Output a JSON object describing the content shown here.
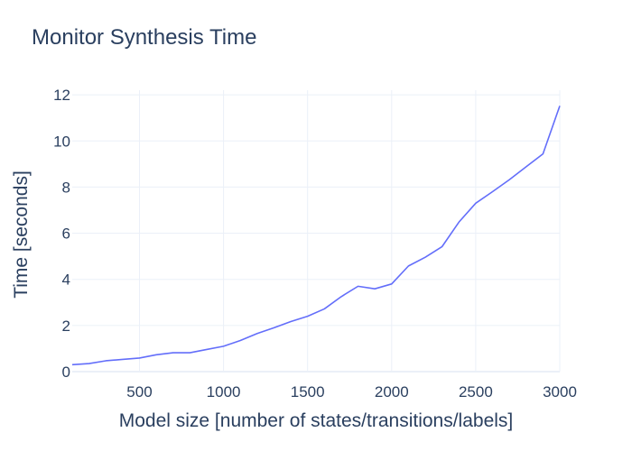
{
  "chart_data": {
    "type": "line",
    "title": "Monitor Synthesis Time",
    "xlabel": "Model size [number of states/transitions/labels]",
    "ylabel": "Time [seconds]",
    "xlim": [
      100,
      3000
    ],
    "ylim": [
      0,
      12.2
    ],
    "xticks": [
      500,
      1000,
      1500,
      2000,
      2500,
      3000
    ],
    "yticks": [
      0,
      2,
      4,
      6,
      8,
      10,
      12
    ],
    "grid": true,
    "legend": "none",
    "series": [
      {
        "color": "#636efa",
        "x": [
          100,
          200,
          300,
          400,
          500,
          600,
          700,
          800,
          900,
          1000,
          1100,
          1200,
          1300,
          1400,
          1500,
          1600,
          1700,
          1800,
          1900,
          2000,
          2100,
          2200,
          2300,
          2400,
          2500,
          2600,
          2700,
          2800,
          2900,
          3000
        ],
        "y": [
          0.3,
          0.35,
          0.47,
          0.53,
          0.59,
          0.73,
          0.82,
          0.82,
          0.96,
          1.1,
          1.35,
          1.65,
          1.9,
          2.17,
          2.4,
          2.72,
          3.25,
          3.7,
          3.59,
          3.8,
          4.58,
          4.96,
          5.42,
          6.48,
          7.3,
          7.8,
          8.32,
          8.88,
          9.44,
          11.52
        ]
      }
    ]
  }
}
